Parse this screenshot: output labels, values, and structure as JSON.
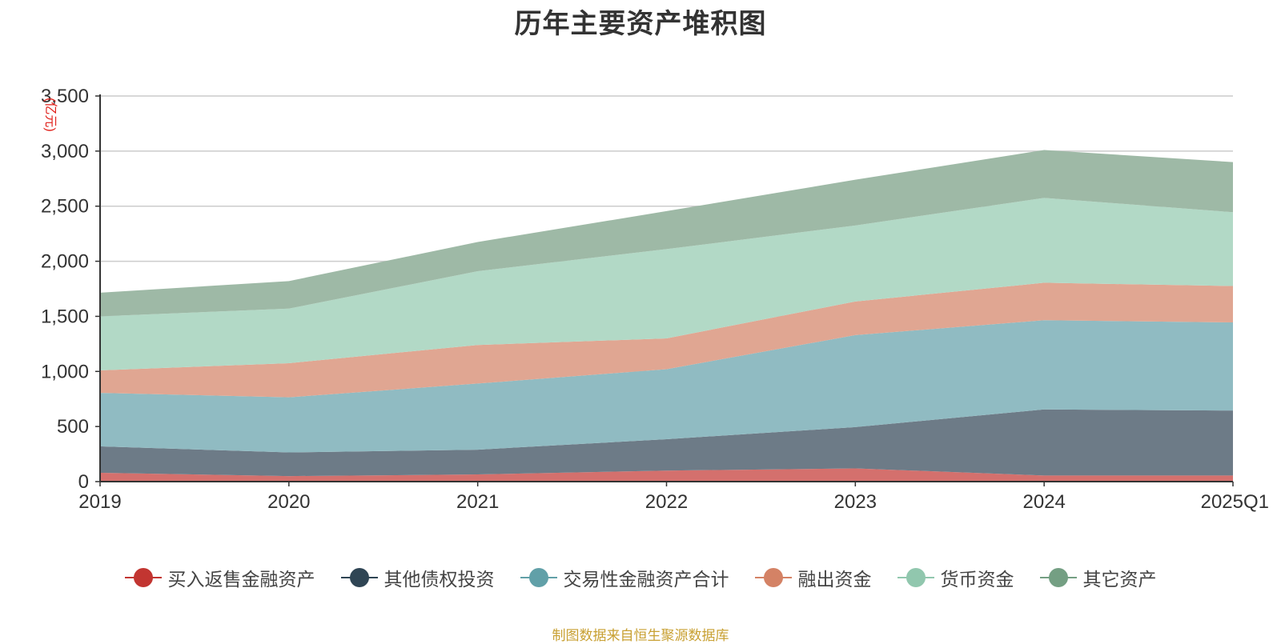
{
  "chart_data": {
    "type": "area",
    "stacked": true,
    "title": "历年主要资产堆积图",
    "ylabel": "(亿元)",
    "xlabel": "",
    "categories": [
      "2019",
      "2020",
      "2021",
      "2022",
      "2023",
      "2024",
      "2025Q1"
    ],
    "ylim": [
      0,
      3500
    ],
    "yticks": [
      "0",
      "500",
      "1,000",
      "1,500",
      "2,000",
      "2,500",
      "3,000",
      "3,500"
    ],
    "grid": true,
    "legend_position": "bottom",
    "series": [
      {
        "name": "买入返售金融资产",
        "values": [
          80,
          50,
          65,
          100,
          120,
          55,
          55
        ],
        "color": "#c23531",
        "fill": "#d4706d"
      },
      {
        "name": "其他债权投资",
        "values": [
          240,
          215,
          225,
          285,
          375,
          600,
          590
        ],
        "color": "#2f4554",
        "fill": "#6d7b87"
      },
      {
        "name": "交易性金融资产合计",
        "values": [
          485,
          500,
          600,
          635,
          835,
          810,
          800
        ],
        "color": "#61a0a8",
        "fill": "#90bbc2"
      },
      {
        "name": "融出资金",
        "values": [
          205,
          310,
          350,
          280,
          305,
          340,
          330
        ],
        "color": "#d48265",
        "fill": "#e0a692"
      },
      {
        "name": "货币资金",
        "values": [
          490,
          495,
          670,
          810,
          690,
          770,
          670
        ],
        "color": "#91c7ae",
        "fill": "#b2d9c6"
      },
      {
        "name": "其它资产",
        "values": [
          215,
          250,
          265,
          345,
          415,
          435,
          455
        ],
        "color": "#749f83",
        "fill": "#9eb9a6"
      }
    ]
  },
  "source_note": "制图数据来自恒生聚源数据库"
}
